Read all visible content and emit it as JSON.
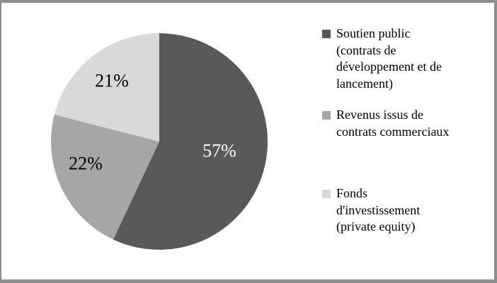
{
  "frame": {
    "border_color": "#8e8e8e",
    "background": "#ffffff"
  },
  "chart_data": {
    "type": "pie",
    "title": "",
    "start_angle_deg": 0,
    "direction": "clockwise",
    "legend_position": "right",
    "slices": [
      {
        "label": "Soutien public\n(contrats de\ndéveloppement et de\nlancement)",
        "value": 57,
        "data_label": "57%",
        "color": "#595959",
        "data_label_color": "#ffffff"
      },
      {
        "label": "Revenus issus de\ncontrats commerciaux",
        "value": 22,
        "data_label": "22%",
        "color": "#a6a6a6",
        "data_label_color": "#000000"
      },
      {
        "label": "Fonds\nd'investissement\n(private equity)",
        "value": 21,
        "data_label": "21%",
        "color": "#d9d9d9",
        "data_label_color": "#000000"
      }
    ]
  }
}
